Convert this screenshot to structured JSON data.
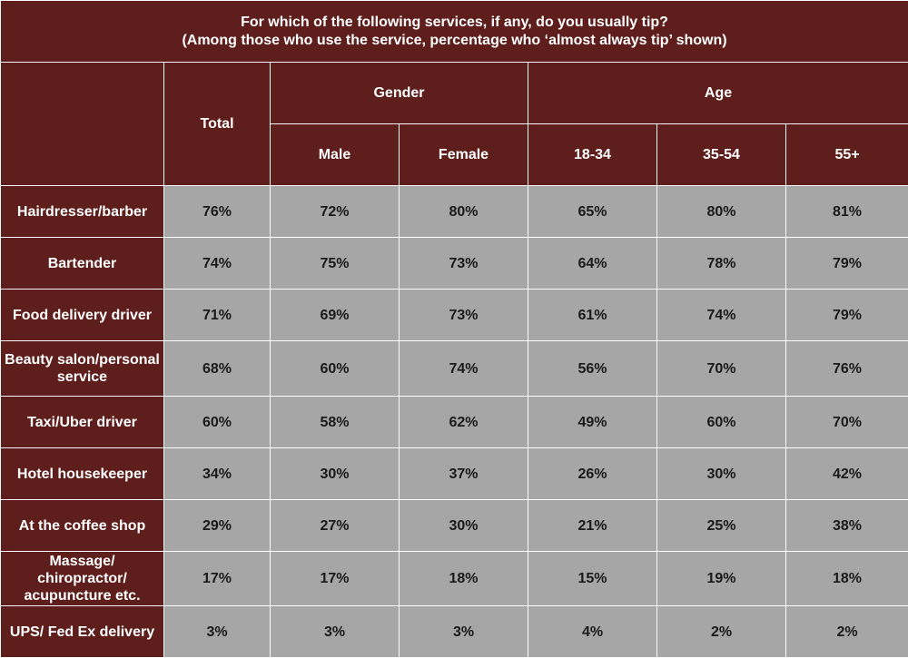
{
  "chart_data": {
    "type": "table",
    "title": "For which of the following services, if any, do you usually tip?",
    "subtitle": "(Among those who use the service, percentage who ‘almost always tip’ shown)",
    "group_headers": {
      "total": "Total",
      "gender": "Gender",
      "age": "Age"
    },
    "columns": [
      "Male",
      "Female",
      "18-34",
      "35-54",
      "55+"
    ],
    "rows": [
      {
        "label": "Hairdresser/barber",
        "values": [
          "76%",
          "72%",
          "80%",
          "65%",
          "80%",
          "81%"
        ]
      },
      {
        "label": "Bartender",
        "values": [
          "74%",
          "75%",
          "73%",
          "64%",
          "78%",
          "79%"
        ]
      },
      {
        "label": "Food delivery driver",
        "values": [
          "71%",
          "69%",
          "73%",
          "61%",
          "74%",
          "79%"
        ]
      },
      {
        "label": "Beauty salon/personal service",
        "values": [
          "68%",
          "60%",
          "74%",
          "56%",
          "70%",
          "76%"
        ]
      },
      {
        "label": "Taxi/Uber driver",
        "values": [
          "60%",
          "58%",
          "62%",
          "49%",
          "60%",
          "70%"
        ]
      },
      {
        "label": "Hotel housekeeper",
        "values": [
          "34%",
          "30%",
          "37%",
          "26%",
          "30%",
          "42%"
        ]
      },
      {
        "label": "At the coffee shop",
        "values": [
          "29%",
          "27%",
          "30%",
          "21%",
          "25%",
          "38%"
        ]
      },
      {
        "label": "Massage/ chiropractor/ acupuncture etc.",
        "values": [
          "17%",
          "17%",
          "18%",
          "15%",
          "19%",
          "18%"
        ]
      },
      {
        "label": "UPS/ Fed Ex delivery",
        "values": [
          "3%",
          "3%",
          "3%",
          "4%",
          "2%",
          "2%"
        ]
      }
    ],
    "colors": {
      "header_bg": "#5e1e1b",
      "header_text": "#ffffff",
      "cell_bg": "#a6a6a6",
      "cell_text": "#1a1a1a"
    }
  }
}
